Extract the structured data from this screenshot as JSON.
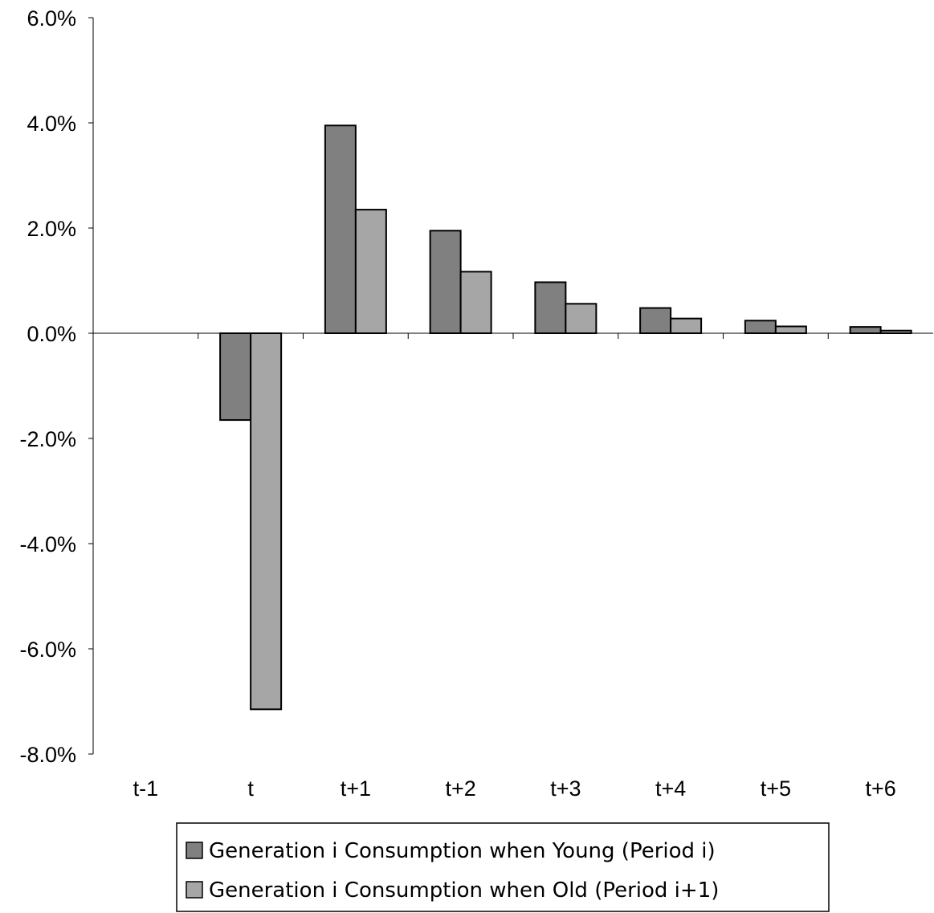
{
  "chart_data": {
    "type": "bar",
    "title": "",
    "xlabel": "",
    "ylabel": "",
    "categories": [
      "t-1",
      "t",
      "t+1",
      "t+2",
      "t+3",
      "t+4",
      "t+5",
      "t+6"
    ],
    "series": [
      {
        "name": "Generation i Consumption when Young (Period i)",
        "color": "#808080",
        "values": [
          0.0,
          -1.65,
          3.95,
          1.95,
          0.97,
          0.48,
          0.24,
          0.12
        ]
      },
      {
        "name": "Generation i Consumption when Old (Period i+1)",
        "color": "#a6a6a6",
        "values": [
          0.0,
          -7.15,
          2.35,
          1.17,
          0.56,
          0.28,
          0.13,
          0.05
        ]
      }
    ],
    "ylim": [
      -8.0,
      6.0
    ],
    "yticks": [
      6.0,
      4.0,
      2.0,
      0.0,
      -2.0,
      -4.0,
      -6.0,
      -8.0
    ],
    "ytick_labels": [
      "6.0%",
      "4.0%",
      "2.0%",
      "0.0%",
      "-2.0%",
      "-4.0%",
      "-6.0%",
      "-8.0%"
    ],
    "grid": false,
    "legend_position": "bottom"
  }
}
